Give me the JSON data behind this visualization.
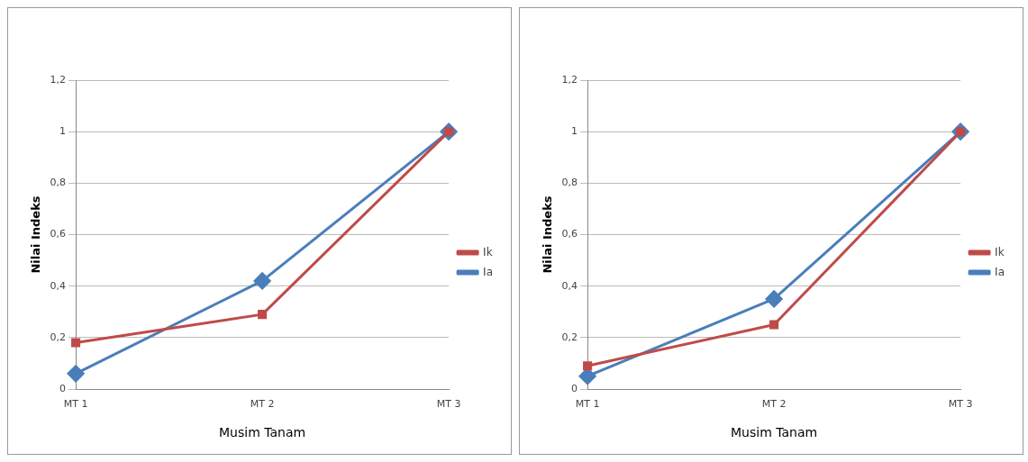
{
  "chart_data": [
    {
      "type": "line",
      "categories": [
        "MT 1",
        "MT 2",
        "MT 3"
      ],
      "xlabel": "Musim Tanam",
      "ylabel": "Nilai Indeks",
      "ylim": [
        0,
        1.2
      ],
      "yticks": [
        {
          "value": 0,
          "label": "0"
        },
        {
          "value": 0.2,
          "label": "0,2"
        },
        {
          "value": 0.4,
          "label": "0,4"
        },
        {
          "value": 0.6,
          "label": "0,6"
        },
        {
          "value": 0.8,
          "label": "0,8"
        },
        {
          "value": 1,
          "label": "1"
        },
        {
          "value": 1.2,
          "label": "1,2"
        }
      ],
      "grid": "y",
      "legend": "right",
      "series": [
        {
          "name": "Ia",
          "color": "#4a7ebb",
          "marker": "diamond",
          "values": [
            0.06,
            0.42,
            1.0
          ]
        },
        {
          "name": "Ik",
          "color": "#be4b48",
          "marker": "square",
          "values": [
            0.18,
            0.29,
            1.0
          ]
        }
      ]
    },
    {
      "type": "line",
      "categories": [
        "MT 1",
        "MT 2",
        "MT 3"
      ],
      "xlabel": "Musim Tanam",
      "ylabel": "Nilai Indeks",
      "ylim": [
        0,
        1.2
      ],
      "yticks": [
        {
          "value": 0,
          "label": "0"
        },
        {
          "value": 0.2,
          "label": "0,2"
        },
        {
          "value": 0.4,
          "label": "0,4"
        },
        {
          "value": 0.6,
          "label": "0,6"
        },
        {
          "value": 0.8,
          "label": "0,8"
        },
        {
          "value": 1,
          "label": "1"
        },
        {
          "value": 1.2,
          "label": "1,2"
        }
      ],
      "grid": "y",
      "legend": "right",
      "series": [
        {
          "name": "Ia",
          "color": "#4a7ebb",
          "marker": "diamond",
          "values": [
            0.05,
            0.35,
            1.0
          ]
        },
        {
          "name": "Ik",
          "color": "#be4b48",
          "marker": "square",
          "values": [
            0.09,
            0.25,
            1.0
          ]
        }
      ]
    }
  ]
}
